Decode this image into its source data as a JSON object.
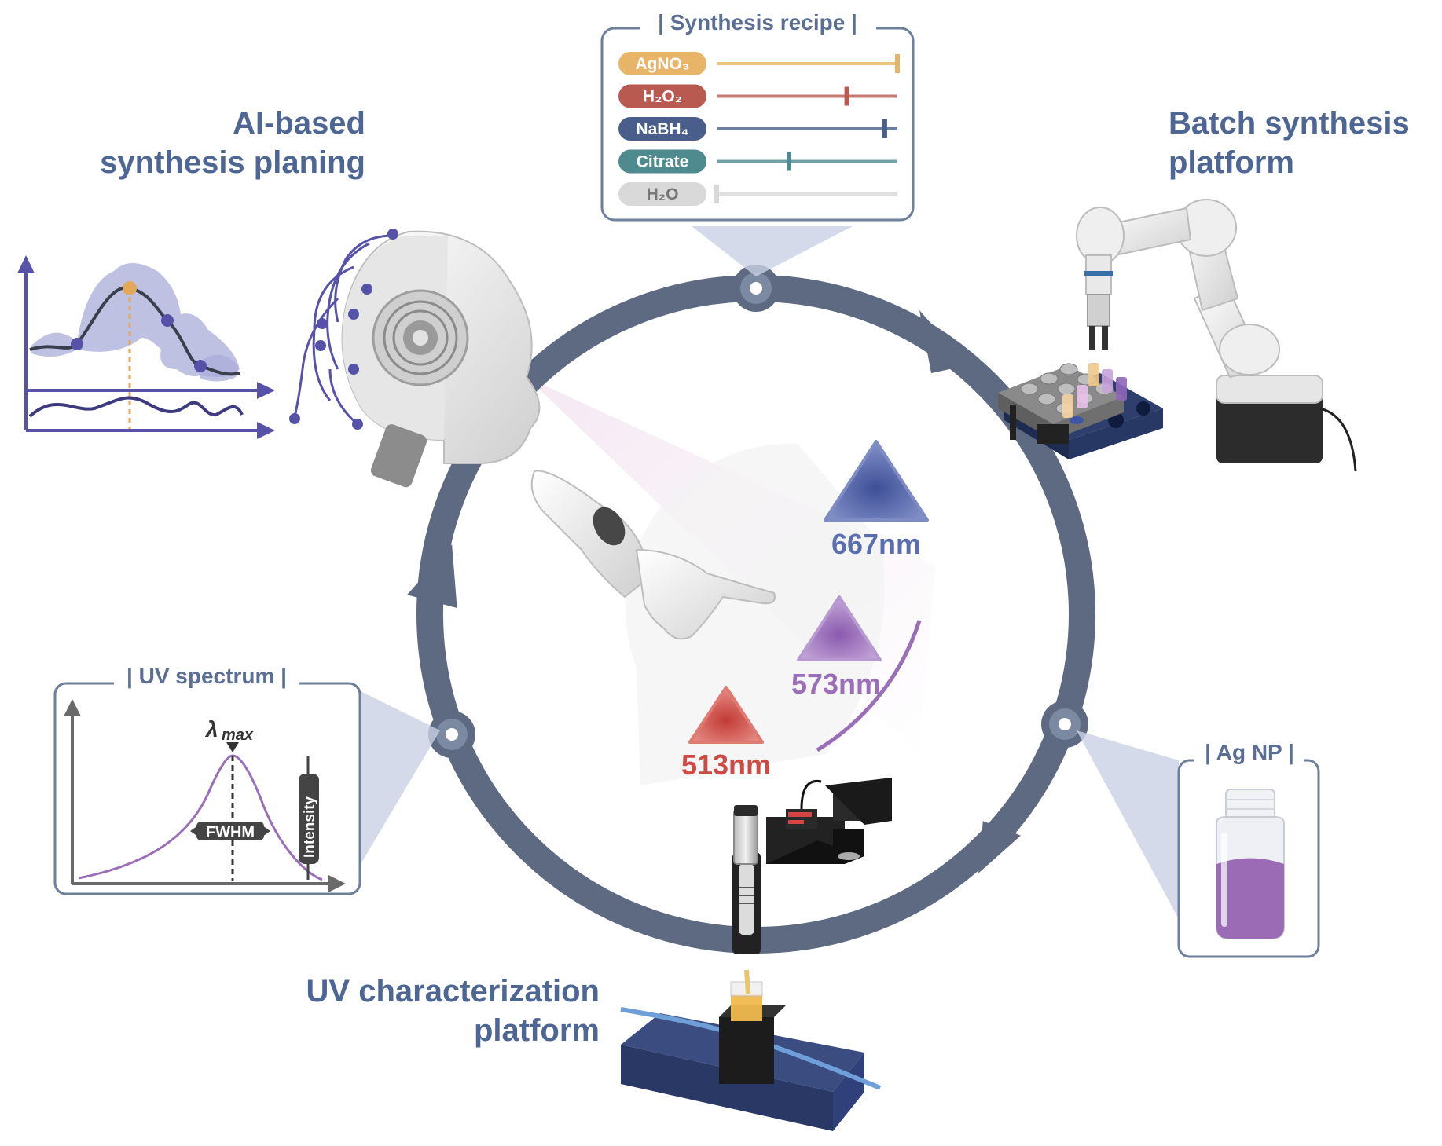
{
  "sections": {
    "ai_planning": {
      "line1": "AI-based",
      "line2": "synthesis planing"
    },
    "batch_platform": {
      "line1": "Batch synthesis",
      "line2": "platform"
    },
    "uv_platform": {
      "line1": "UV characterization",
      "line2": "platform"
    }
  },
  "recipe": {
    "title": "| Synthesis recipe |",
    "items": [
      {
        "label": "AgNO₃",
        "color": "#e8b467",
        "level": 1.0
      },
      {
        "label": "H₂O₂",
        "color": "#b85a4f",
        "level": 0.72
      },
      {
        "label": "NaBH₄",
        "color": "#4a5e8c",
        "level": 0.93
      },
      {
        "label": "Citrate",
        "color": "#4f8a8f",
        "level": 0.4
      },
      {
        "label": "H₂O",
        "color": "#d9d9d9",
        "level": 0.0
      }
    ]
  },
  "uv_spectrum": {
    "title": "| UV spectrum |",
    "lambda": "λ",
    "lambda_sub": "max",
    "fwhm": "FWHM",
    "intensity": "Intensity"
  },
  "ag_np": {
    "title": "| Ag NP |",
    "fill_color": "#9b6bb5"
  },
  "wavelengths": [
    {
      "label": "667nm",
      "color": "#5a6fb0"
    },
    {
      "label": "573nm",
      "color": "#9b6fb8"
    },
    {
      "label": "513nm",
      "color": "#cc4b45"
    }
  ],
  "colors": {
    "cycle": "#5d6a82",
    "heading": "#4e6693",
    "graph_line": "#5552a8"
  }
}
